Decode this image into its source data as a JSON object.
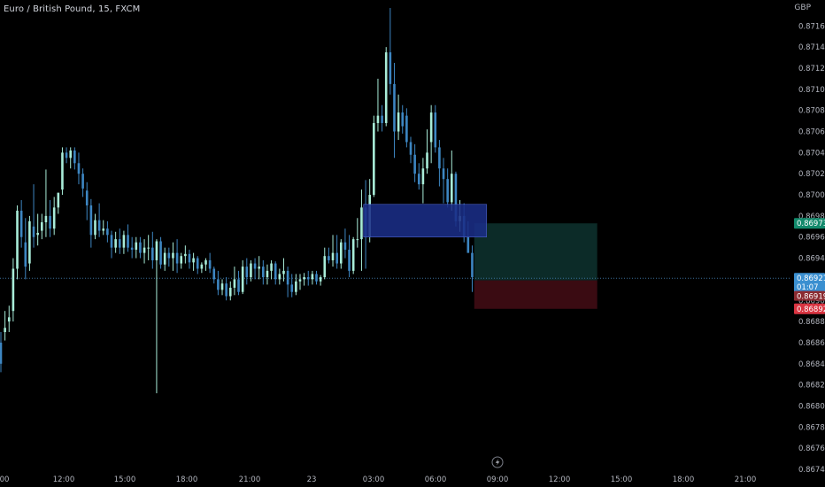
{
  "header": {
    "symbol_title": "Euro / British Pound, 15, FXCM",
    "currency": "GBP"
  },
  "colors": {
    "background": "#000000",
    "bull": "#a8ecd8",
    "bear": "#3d86c2",
    "grid_text": "#b2b5be",
    "target_zone": "#0c2b28",
    "stop_zone": "#3a0b12",
    "order_block": "#1a2d86",
    "label_green": "#138a6c",
    "label_blue": "#3a8fd0",
    "label_dark_red": "#8a2a30",
    "label_red": "#d93441"
  },
  "price_labels": {
    "target": "0.86973",
    "last": "0.86921",
    "countdown": "01:07",
    "entry": "0.86919",
    "stop": "0.86892"
  },
  "lightning_icon": "lightning-icon",
  "chart_data": {
    "type": "candlestick",
    "title": "Euro / British Pound, 15, FXCM",
    "ylabel": "GBP",
    "ylim": [
      0.86734,
      0.87181
    ],
    "y_ticks": [
      "0.87160",
      "0.87140",
      "0.87120",
      "0.87100",
      "0.87080",
      "0.87060",
      "0.87040",
      "0.87020",
      "0.87000",
      "0.86980",
      "0.86960",
      "0.86940",
      "0.86920",
      "0.86900",
      "0.86880",
      "0.86860",
      "0.86840",
      "0.86820",
      "0.86800",
      "0.86780",
      "0.86760",
      "0.86740"
    ],
    "x_ticks": [
      "00",
      "12:00",
      "15:00",
      "18:00",
      "21:00",
      "23",
      "03:00",
      "06:00",
      "09:00",
      "12:00",
      "15:00",
      "18:00",
      "21:00"
    ],
    "candles": [
      [
        0.8686,
        0.8687,
        0.8684,
        0.86832
      ],
      [
        0.8687,
        0.8689,
        0.86874,
        0.86862
      ],
      [
        0.8688,
        0.86895,
        0.86884,
        0.8687
      ],
      [
        0.8689,
        0.8694,
        0.8693,
        0.8688
      ],
      [
        0.8693,
        0.8699,
        0.86985,
        0.8692
      ],
      [
        0.86985,
        0.86995,
        0.8696,
        0.8695
      ],
      [
        0.86955,
        0.86978,
        0.86932,
        0.8692
      ],
      [
        0.86935,
        0.8698,
        0.86975,
        0.86928
      ],
      [
        0.8697,
        0.8701,
        0.8696,
        0.8695
      ],
      [
        0.86962,
        0.86982,
        0.86964,
        0.86952
      ],
      [
        0.86966,
        0.86982,
        0.86974,
        0.86958
      ],
      [
        0.86974,
        0.87024,
        0.8698,
        0.8696
      ],
      [
        0.8698,
        0.86995,
        0.86968,
        0.8696
      ],
      [
        0.86968,
        0.86998,
        0.86988,
        0.86962
      ],
      [
        0.86988,
        0.87002,
        0.87002,
        0.86982
      ],
      [
        0.87005,
        0.87045,
        0.8704,
        0.87
      ],
      [
        0.8704,
        0.87045,
        0.87035,
        0.8703
      ],
      [
        0.87035,
        0.87045,
        0.87042,
        0.87025
      ],
      [
        0.87042,
        0.87045,
        0.8703,
        0.87024
      ],
      [
        0.8703,
        0.8704,
        0.8702,
        0.8701
      ],
      [
        0.8702,
        0.87025,
        0.87006,
        0.86998
      ],
      [
        0.87004,
        0.87012,
        0.8699,
        0.86976
      ],
      [
        0.8699,
        0.86996,
        0.86962,
        0.8695
      ],
      [
        0.86962,
        0.86982,
        0.86976,
        0.86958
      ],
      [
        0.86976,
        0.86992,
        0.86966,
        0.8696
      ],
      [
        0.86966,
        0.86976,
        0.86968,
        0.86962
      ],
      [
        0.86968,
        0.86975,
        0.86962,
        0.86955
      ],
      [
        0.86962,
        0.86966,
        0.8695,
        0.8694
      ],
      [
        0.8695,
        0.86965,
        0.86958,
        0.86945
      ],
      [
        0.86958,
        0.86968,
        0.8695,
        0.86944
      ],
      [
        0.8695,
        0.86966,
        0.86962,
        0.86944
      ],
      [
        0.86962,
        0.86972,
        0.8695,
        0.86946
      ],
      [
        0.8695,
        0.8696,
        0.86948,
        0.8694
      ],
      [
        0.86948,
        0.8696,
        0.86955,
        0.8694
      ],
      [
        0.86955,
        0.8696,
        0.86945,
        0.8694
      ],
      [
        0.86945,
        0.86958,
        0.8695,
        0.86935
      ],
      [
        0.8695,
        0.86962,
        0.8695,
        0.86938
      ],
      [
        0.8695,
        0.86965,
        0.86938,
        0.8693
      ],
      [
        0.86938,
        0.86958,
        0.86956,
        0.86812
      ],
      [
        0.86956,
        0.8696,
        0.86934,
        0.8693
      ],
      [
        0.86934,
        0.8695,
        0.86945,
        0.86928
      ],
      [
        0.86945,
        0.8695,
        0.8694,
        0.86932
      ],
      [
        0.8694,
        0.86955,
        0.86945,
        0.86928
      ],
      [
        0.86945,
        0.86958,
        0.86935,
        0.86926
      ],
      [
        0.86935,
        0.86945,
        0.86942,
        0.8693
      ],
      [
        0.86942,
        0.86952,
        0.86944,
        0.86935
      ],
      [
        0.86944,
        0.86948,
        0.86936,
        0.8693
      ],
      [
        0.86936,
        0.86945,
        0.8694,
        0.86928
      ],
      [
        0.8694,
        0.86942,
        0.8693,
        0.86925
      ],
      [
        0.8693,
        0.86936,
        0.86934,
        0.86926
      ],
      [
        0.86934,
        0.8694,
        0.86938,
        0.86928
      ],
      [
        0.86938,
        0.86945,
        0.8693,
        0.86926
      ],
      [
        0.8693,
        0.86932,
        0.8692,
        0.86916
      ],
      [
        0.8692,
        0.86928,
        0.8691,
        0.86905
      ],
      [
        0.8691,
        0.8692,
        0.86916,
        0.86905
      ],
      [
        0.86916,
        0.86922,
        0.86904,
        0.869
      ],
      [
        0.86904,
        0.86918,
        0.86912,
        0.869
      ],
      [
        0.86912,
        0.86932,
        0.8692,
        0.86905
      ],
      [
        0.8692,
        0.86928,
        0.86908,
        0.86905
      ],
      [
        0.86908,
        0.86938,
        0.86932,
        0.86906
      ],
      [
        0.86932,
        0.8694,
        0.86922,
        0.86915
      ],
      [
        0.86922,
        0.86938,
        0.86935,
        0.86918
      ],
      [
        0.86935,
        0.8694,
        0.8693,
        0.8692
      ],
      [
        0.8693,
        0.86942,
        0.86932,
        0.8692
      ],
      [
        0.86932,
        0.86938,
        0.86922,
        0.86915
      ],
      [
        0.86922,
        0.86934,
        0.86928,
        0.86915
      ],
      [
        0.86928,
        0.86938,
        0.86935,
        0.8692
      ],
      [
        0.86935,
        0.86937,
        0.8692,
        0.86915
      ],
      [
        0.8692,
        0.8693,
        0.86925,
        0.86915
      ],
      [
        0.86925,
        0.8694,
        0.86928,
        0.86918
      ],
      [
        0.86928,
        0.86932,
        0.86915,
        0.86903
      ],
      [
        0.86915,
        0.86925,
        0.86908,
        0.86903
      ],
      [
        0.86908,
        0.86925,
        0.86918,
        0.86905
      ],
      [
        0.86918,
        0.86925,
        0.8692,
        0.8691
      ],
      [
        0.8692,
        0.86926,
        0.86922,
        0.86914
      ],
      [
        0.86922,
        0.86928,
        0.8692,
        0.86914
      ],
      [
        0.8692,
        0.86928,
        0.86925,
        0.86915
      ],
      [
        0.86925,
        0.86928,
        0.86918,
        0.86915
      ],
      [
        0.86918,
        0.86924,
        0.86922,
        0.86914
      ],
      [
        0.86922,
        0.8695,
        0.86942,
        0.8692
      ],
      [
        0.86942,
        0.8695,
        0.86938,
        0.86935
      ],
      [
        0.86938,
        0.86962,
        0.86945,
        0.86932
      ],
      [
        0.86945,
        0.86962,
        0.86935,
        0.8693
      ],
      [
        0.86935,
        0.86958,
        0.86955,
        0.8693
      ],
      [
        0.86955,
        0.86968,
        0.86948,
        0.8694
      ],
      [
        0.86948,
        0.86962,
        0.86928,
        0.86922
      ],
      [
        0.86928,
        0.8696,
        0.86958,
        0.86925
      ],
      [
        0.86958,
        0.86978,
        0.86958,
        0.8695
      ],
      [
        0.86958,
        0.87005,
        0.86988,
        0.86928
      ],
      [
        0.86988,
        0.87014,
        0.8696,
        0.8693
      ],
      [
        0.8696,
        0.87015,
        0.87,
        0.86955
      ],
      [
        0.87,
        0.87075,
        0.87068,
        0.86998
      ],
      [
        0.87068,
        0.8711,
        0.87075,
        0.8706
      ],
      [
        0.87075,
        0.87085,
        0.87068,
        0.8706
      ],
      [
        0.87068,
        0.8714,
        0.87135,
        0.87065
      ],
      [
        0.87135,
        0.87177,
        0.87105,
        0.87095
      ],
      [
        0.87105,
        0.87125,
        0.8706,
        0.87035
      ],
      [
        0.8706,
        0.87095,
        0.87078,
        0.87052
      ],
      [
        0.87078,
        0.87085,
        0.87065,
        0.87058
      ],
      [
        0.87075,
        0.87082,
        0.8705,
        0.87045
      ],
      [
        0.8705,
        0.87055,
        0.87038,
        0.8703
      ],
      [
        0.87038,
        0.87048,
        0.8702,
        0.87012
      ],
      [
        0.8702,
        0.8703,
        0.8701,
        0.87005
      ],
      [
        0.8701,
        0.87035,
        0.87025,
        0.86992
      ],
      [
        0.87025,
        0.87062,
        0.8704,
        0.8702
      ],
      [
        0.8705,
        0.87085,
        0.87078,
        0.8703
      ],
      [
        0.87078,
        0.87085,
        0.87045,
        0.8704
      ],
      [
        0.87045,
        0.87052,
        0.87025,
        0.87008
      ],
      [
        0.87025,
        0.87035,
        0.87015,
        0.86992
      ],
      [
        0.87015,
        0.87025,
        0.86993,
        0.86988
      ],
      [
        0.86993,
        0.87042,
        0.8702,
        0.86985
      ],
      [
        0.8702,
        0.87022,
        0.86975,
        0.8697
      ],
      [
        0.86975,
        0.86995,
        0.8698,
        0.86965
      ],
      [
        0.8698,
        0.86992,
        0.8696,
        0.86955
      ],
      [
        0.8696,
        0.86975,
        0.86945,
        0.86945
      ],
      [
        0.86945,
        0.86952,
        0.86922,
        0.86908
      ]
    ],
    "order_block": {
      "x0": 88.5,
      "x1": 118.5,
      "y_top": 0.86991,
      "y_bottom": 0.8696
    },
    "target_zone": {
      "x0": 115.5,
      "x1": 145.5,
      "y_top": 0.86973,
      "y_bottom": 0.86919
    },
    "stop_zone": {
      "x0": 115.5,
      "x1": 145.5,
      "y_top": 0.86919,
      "y_bottom": 0.86892
    },
    "last_price": 0.86921
  }
}
